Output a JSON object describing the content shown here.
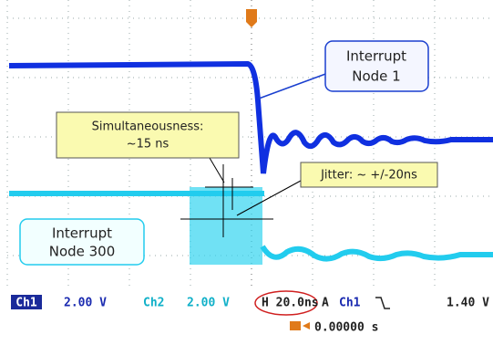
{
  "callouts": {
    "node1": [
      "Interrupt",
      "Node 1"
    ],
    "simultaneousness": [
      "Simultaneousness:",
      "~15 ns"
    ],
    "jitter": "Jitter: ~ +/-20ns",
    "node300": [
      "Interrupt",
      "Node 300"
    ]
  },
  "status_bar": {
    "ch1_label": "Ch1",
    "ch1_scale": "2.00 V",
    "ch2_label": "Ch2",
    "ch2_scale": "2.00 V",
    "horizontal": "H 20.0ns",
    "trigger_mode": "A",
    "trigger_source": "Ch1",
    "trigger_level": "1.40 V",
    "trigger_position": "0.00000 s"
  }
}
